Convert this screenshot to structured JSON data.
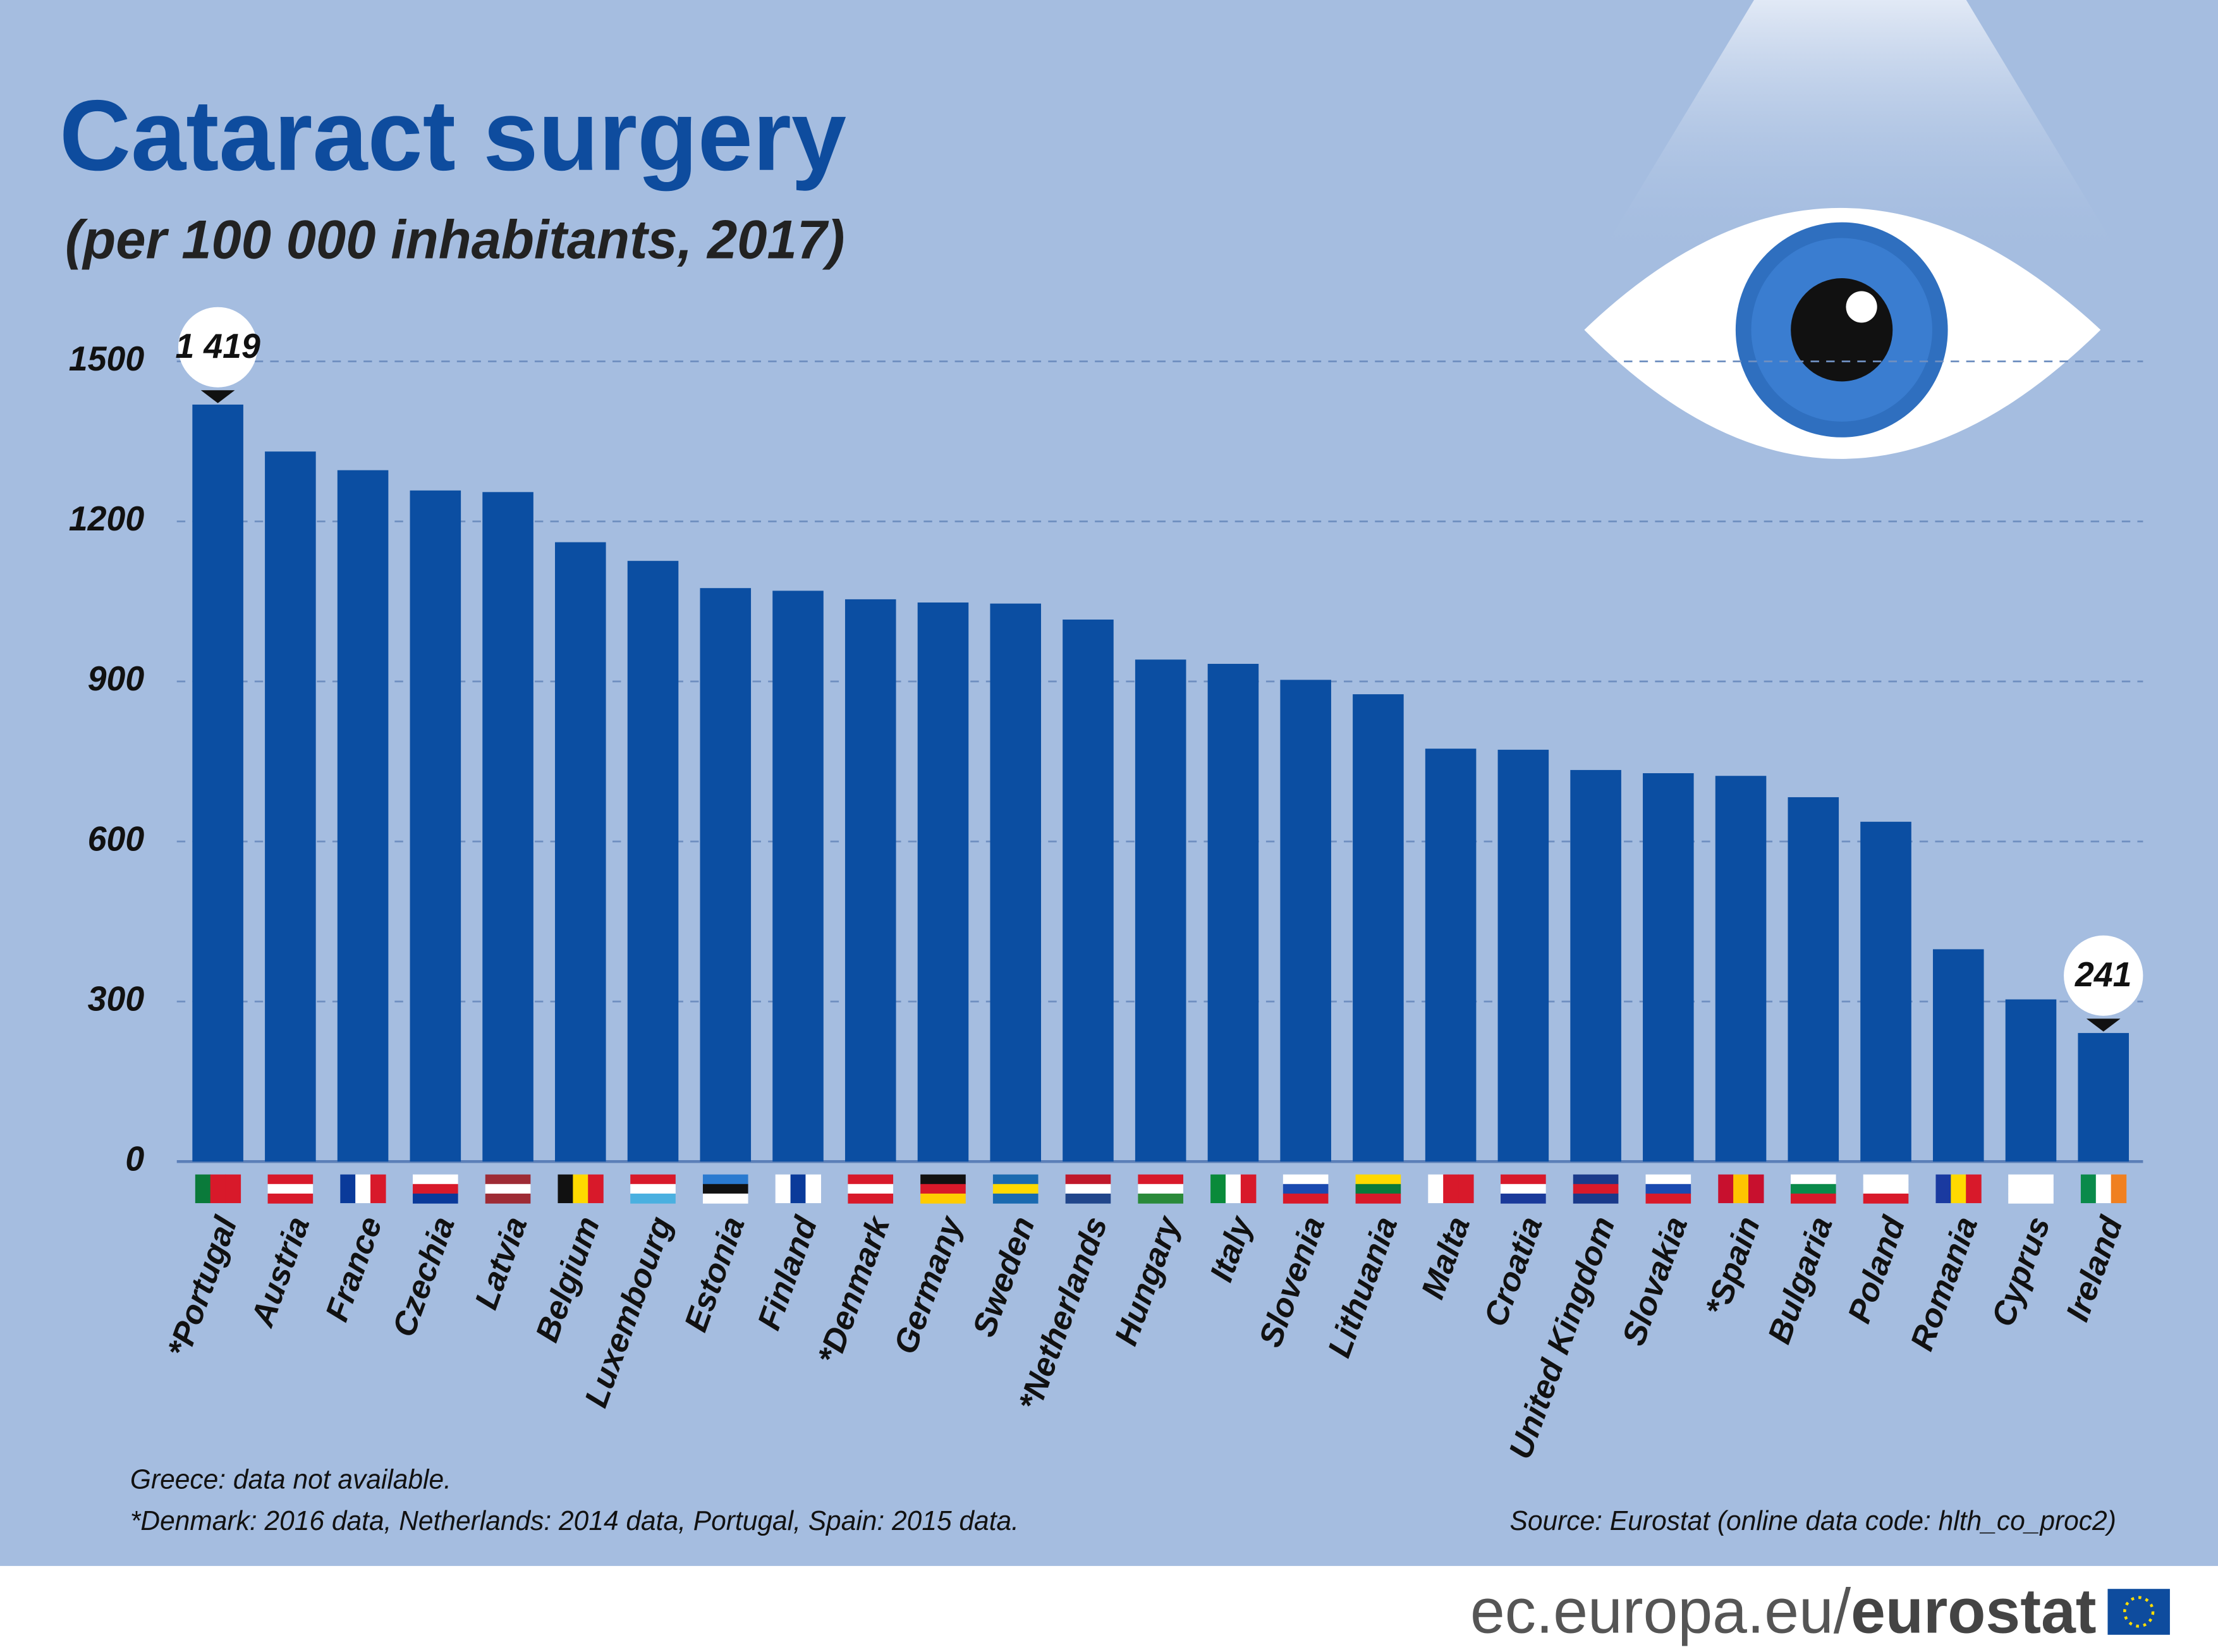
{
  "chart_data": {
    "type": "bar",
    "title": "Cataract surgery",
    "subtitle": "(per 100 000 inhabitants, 2017)",
    "categories": [
      "*Portugal",
      "Austria",
      "France",
      "Czechia",
      "Latvia",
      "Belgium",
      "Luxembourg",
      "Estonia",
      "Finland",
      "*Denmark",
      "Germany",
      "Sweden",
      "*Netherlands",
      "Hungary",
      "Italy",
      "Slovenia",
      "Lithuania",
      "Malta",
      "Croatia",
      "United Kingdom",
      "Slovakia",
      "*Spain",
      "Bulgaria",
      "Poland",
      "Romania",
      "Cyprus",
      "Ireland"
    ],
    "values": [
      1419,
      1331,
      1296,
      1258,
      1255,
      1161,
      1126,
      1075,
      1070,
      1054,
      1048,
      1046,
      1016,
      941,
      933,
      903,
      876,
      774,
      772,
      734,
      728,
      723,
      683,
      637,
      398,
      304,
      241
    ],
    "value_labels": [
      "1 419",
      null,
      null,
      null,
      null,
      null,
      null,
      null,
      null,
      null,
      null,
      null,
      null,
      null,
      null,
      null,
      null,
      null,
      null,
      null,
      null,
      null,
      null,
      null,
      null,
      null,
      "241"
    ],
    "color": "#0b4ea2",
    "ylim": [
      0,
      1500
    ],
    "yticks": [
      0,
      300,
      600,
      900,
      1200,
      1500
    ],
    "grid": true,
    "notes": [
      "Greece: data not available.",
      "*Denmark: 2016 data, Netherlands: 2014 data, Portugal, Spain: 2015 data."
    ],
    "source": "Source: Eurostat (online data code: hlth_co_proc2)"
  },
  "footer": {
    "domain": "ec.europa.eu/",
    "brand": "eurostat"
  }
}
